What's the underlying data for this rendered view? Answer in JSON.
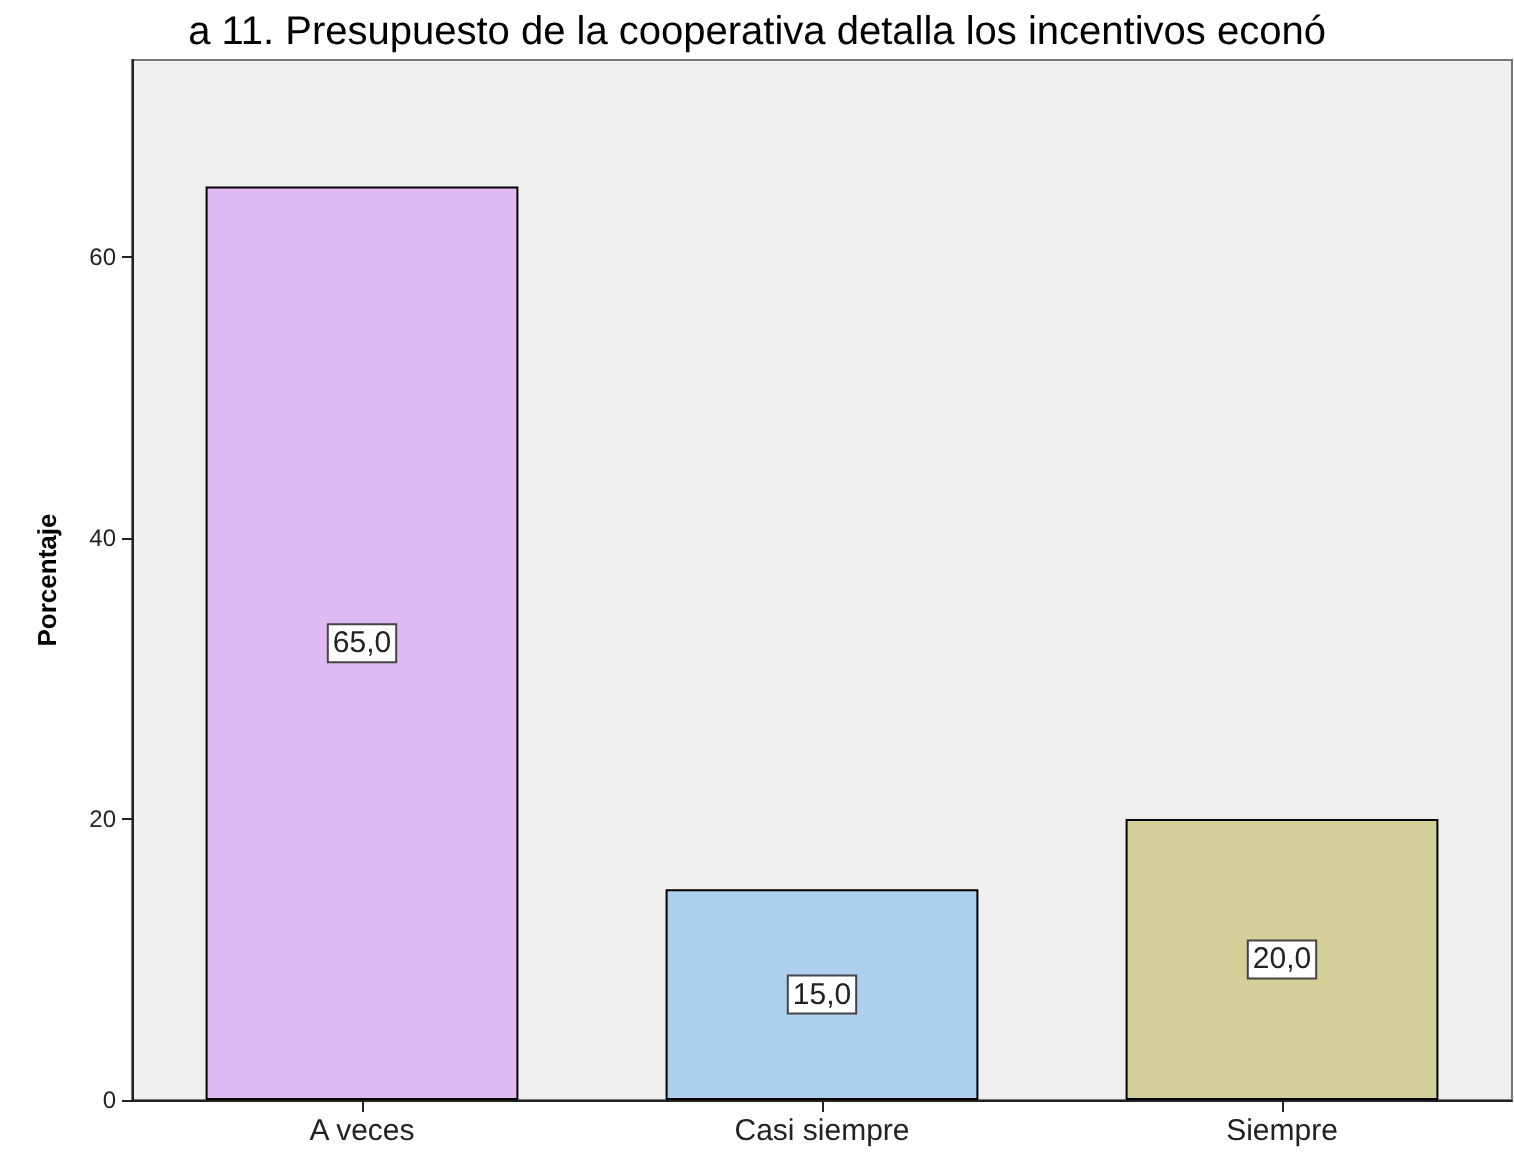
{
  "chart_data": {
    "type": "bar",
    "title": "a 11. Presupuesto de la cooperativa detalla los incentivos econó",
    "ylabel": "Porcentaje",
    "categories": [
      "A veces",
      "Casi siempre",
      "Siempre"
    ],
    "values": [
      65,
      15,
      20
    ],
    "colors": [
      "#dfb9f2",
      "#acd0ee",
      "#d4cf99"
    ],
    "value_labels": [
      "65,0",
      "15,0",
      "20,0"
    ],
    "ylim": [
      0,
      74
    ],
    "yticks": [
      0,
      20,
      40,
      60
    ]
  }
}
